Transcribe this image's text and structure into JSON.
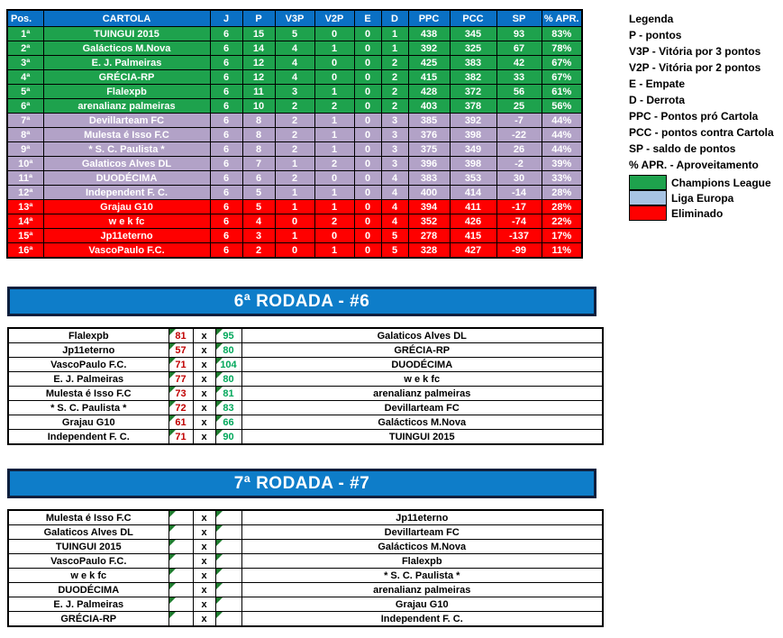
{
  "standings": {
    "headers": [
      "Pos.",
      "CARTOLA",
      "J",
      "P",
      "V3P",
      "V2P",
      "E",
      "D",
      "PPC",
      "PCC",
      "SP",
      "% APR."
    ],
    "rows": [
      {
        "pos": "1ª",
        "team": "TUINGUI 2015",
        "j": "6",
        "p": "15",
        "v3p": "5",
        "v2p": "0",
        "e": "0",
        "d": "1",
        "ppc": "438",
        "pcc": "345",
        "sp": "93",
        "apr": "83%",
        "zone": "champions"
      },
      {
        "pos": "2ª",
        "team": "Galácticos M.Nova",
        "j": "6",
        "p": "14",
        "v3p": "4",
        "v2p": "1",
        "e": "0",
        "d": "1",
        "ppc": "392",
        "pcc": "325",
        "sp": "67",
        "apr": "78%",
        "zone": "champions"
      },
      {
        "pos": "3ª",
        "team": "E. J. Palmeiras",
        "j": "6",
        "p": "12",
        "v3p": "4",
        "v2p": "0",
        "e": "0",
        "d": "2",
        "ppc": "425",
        "pcc": "383",
        "sp": "42",
        "apr": "67%",
        "zone": "champions"
      },
      {
        "pos": "4ª",
        "team": "GRÉCIA-RP",
        "j": "6",
        "p": "12",
        "v3p": "4",
        "v2p": "0",
        "e": "0",
        "d": "2",
        "ppc": "415",
        "pcc": "382",
        "sp": "33",
        "apr": "67%",
        "zone": "champions"
      },
      {
        "pos": "5ª",
        "team": "Flalexpb",
        "j": "6",
        "p": "11",
        "v3p": "3",
        "v2p": "1",
        "e": "0",
        "d": "2",
        "ppc": "428",
        "pcc": "372",
        "sp": "56",
        "apr": "61%",
        "zone": "champions"
      },
      {
        "pos": "6ª",
        "team": "arenalianz palmeiras",
        "j": "6",
        "p": "10",
        "v3p": "2",
        "v2p": "2",
        "e": "0",
        "d": "2",
        "ppc": "403",
        "pcc": "378",
        "sp": "25",
        "apr": "56%",
        "zone": "champions"
      },
      {
        "pos": "7ª",
        "team": "Devillarteam FC",
        "j": "6",
        "p": "8",
        "v3p": "2",
        "v2p": "1",
        "e": "0",
        "d": "3",
        "ppc": "385",
        "pcc": "392",
        "sp": "-7",
        "apr": "44%",
        "zone": "europa"
      },
      {
        "pos": "8ª",
        "team": "Mulesta é Isso F.C",
        "j": "6",
        "p": "8",
        "v3p": "2",
        "v2p": "1",
        "e": "0",
        "d": "3",
        "ppc": "376",
        "pcc": "398",
        "sp": "-22",
        "apr": "44%",
        "zone": "europa"
      },
      {
        "pos": "9ª",
        "team": "* S. C. Paulista *",
        "j": "6",
        "p": "8",
        "v3p": "2",
        "v2p": "1",
        "e": "0",
        "d": "3",
        "ppc": "375",
        "pcc": "349",
        "sp": "26",
        "apr": "44%",
        "zone": "europa"
      },
      {
        "pos": "10ª",
        "team": "Galaticos Alves DL",
        "j": "6",
        "p": "7",
        "v3p": "1",
        "v2p": "2",
        "e": "0",
        "d": "3",
        "ppc": "396",
        "pcc": "398",
        "sp": "-2",
        "apr": "39%",
        "zone": "europa"
      },
      {
        "pos": "11ª",
        "team": "DUODÉCIMA",
        "j": "6",
        "p": "6",
        "v3p": "2",
        "v2p": "0",
        "e": "0",
        "d": "4",
        "ppc": "383",
        "pcc": "353",
        "sp": "30",
        "apr": "33%",
        "zone": "europa"
      },
      {
        "pos": "12ª",
        "team": "Independent F. C.",
        "j": "6",
        "p": "5",
        "v3p": "1",
        "v2p": "1",
        "e": "0",
        "d": "4",
        "ppc": "400",
        "pcc": "414",
        "sp": "-14",
        "apr": "28%",
        "zone": "europa"
      },
      {
        "pos": "13ª",
        "team": "Grajau G10",
        "j": "6",
        "p": "5",
        "v3p": "1",
        "v2p": "1",
        "e": "0",
        "d": "4",
        "ppc": "394",
        "pcc": "411",
        "sp": "-17",
        "apr": "28%",
        "zone": "eliminated"
      },
      {
        "pos": "14ª",
        "team": "w e k fc",
        "j": "6",
        "p": "4",
        "v3p": "0",
        "v2p": "2",
        "e": "0",
        "d": "4",
        "ppc": "352",
        "pcc": "426",
        "sp": "-74",
        "apr": "22%",
        "zone": "eliminated"
      },
      {
        "pos": "15ª",
        "team": "Jp11eterno",
        "j": "6",
        "p": "3",
        "v3p": "1",
        "v2p": "0",
        "e": "0",
        "d": "5",
        "ppc": "278",
        "pcc": "415",
        "sp": "-137",
        "apr": "17%",
        "zone": "eliminated"
      },
      {
        "pos": "16ª",
        "team": "VascoPaulo F.C.",
        "j": "6",
        "p": "2",
        "v3p": "0",
        "v2p": "1",
        "e": "0",
        "d": "5",
        "ppc": "328",
        "pcc": "427",
        "sp": "-99",
        "apr": "11%",
        "zone": "eliminated"
      }
    ]
  },
  "legend": {
    "title": "Legenda",
    "items": [
      "P - pontos",
      "V3P - Vitória por 3 pontos",
      "V2P - Vitória por 2 pontos",
      "E - Empate",
      "D - Derrota",
      "PPC - Pontos pró Cartola",
      "PCC - pontos contra Cartola",
      "SP - saldo de pontos",
      "% APR. - Aproveitamento"
    ],
    "zones": [
      {
        "label": "Champions League",
        "color": "#1ea24d"
      },
      {
        "label": "Liga Europa",
        "color": "#a7c3e3"
      },
      {
        "label": "Eliminado",
        "color": "#fe0000"
      }
    ]
  },
  "rounds_separator": "x",
  "rounds": [
    {
      "title": "6ª RODADA - #6",
      "matches": [
        {
          "home": "Flalexpb",
          "home_score": "81",
          "away_score": "95",
          "away": "Galaticos Alves DL"
        },
        {
          "home": "Jp11eterno",
          "home_score": "57",
          "away_score": "80",
          "away": "GRÉCIA-RP"
        },
        {
          "home": "VascoPaulo F.C.",
          "home_score": "71",
          "away_score": "104",
          "away": "DUODÉCIMA"
        },
        {
          "home": "E. J. Palmeiras",
          "home_score": "77",
          "away_score": "80",
          "away": "w e k fc"
        },
        {
          "home": "Mulesta é Isso F.C",
          "home_score": "73",
          "away_score": "81",
          "away": "arenalianz palmeiras"
        },
        {
          "home": "* S. C. Paulista *",
          "home_score": "72",
          "away_score": "83",
          "away": "Devillarteam FC"
        },
        {
          "home": "Grajau G10",
          "home_score": "61",
          "away_score": "66",
          "away": "Galácticos M.Nova"
        },
        {
          "home": "Independent F. C.",
          "home_score": "71",
          "away_score": "90",
          "away": "TUINGUI 2015"
        }
      ]
    },
    {
      "title": "7ª RODADA - #7",
      "matches": [
        {
          "home": "Mulesta é Isso F.C",
          "home_score": "",
          "away_score": "",
          "away": "Jp11eterno"
        },
        {
          "home": "Galaticos Alves DL",
          "home_score": "",
          "away_score": "",
          "away": "Devillarteam FC"
        },
        {
          "home": "TUINGUI 2015",
          "home_score": "",
          "away_score": "",
          "away": "Galácticos M.Nova"
        },
        {
          "home": "VascoPaulo F.C.",
          "home_score": "",
          "away_score": "",
          "away": "Flalexpb"
        },
        {
          "home": "w e k fc",
          "home_score": "",
          "away_score": "",
          "away": "* S. C. Paulista *"
        },
        {
          "home": "DUODÉCIMA",
          "home_score": "",
          "away_score": "",
          "away": "arenalianz palmeiras"
        },
        {
          "home": "E. J. Palmeiras",
          "home_score": "",
          "away_score": "",
          "away": "Grajau G10"
        },
        {
          "home": "GRÉCIA-RP",
          "home_score": "",
          "away_score": "",
          "away": "Independent F. C."
        }
      ]
    }
  ],
  "colors": {
    "header_bg": "#0a70c4",
    "banner_bg": "#0e7dc9",
    "row_champions": "#1ea24d",
    "row_europa": "#b2a2c7",
    "row_eliminated": "#fe0000",
    "score_loss": "#c00000",
    "score_win": "#00a75a",
    "flag_triangle": "#1e7b2e"
  }
}
